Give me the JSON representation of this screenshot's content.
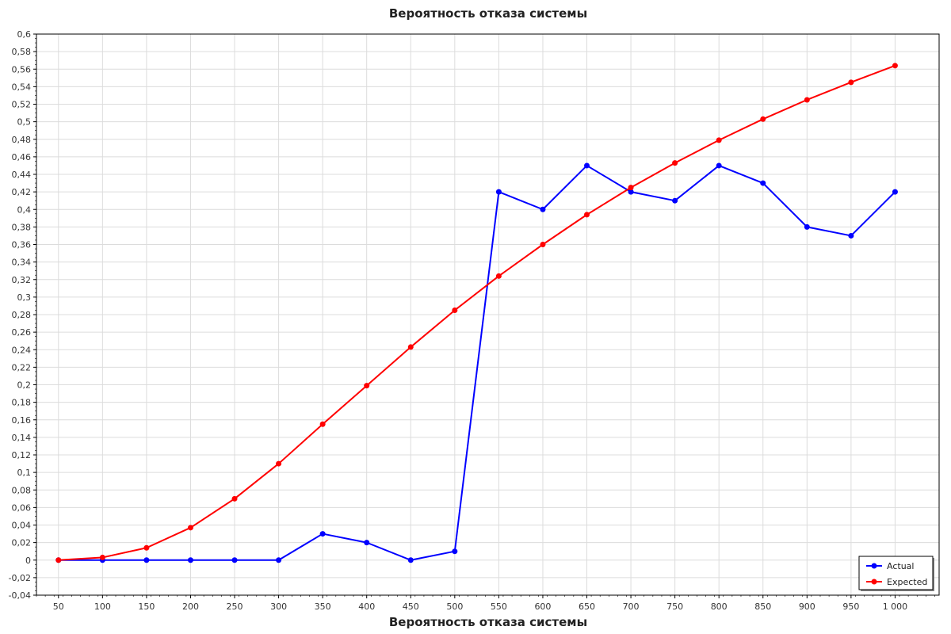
{
  "chart_data": {
    "type": "line",
    "title": "Вероятность отказа системы",
    "xlabel": "Вероятность отказа системы",
    "ylabel": "",
    "x": [
      50,
      100,
      150,
      200,
      250,
      300,
      350,
      400,
      450,
      500,
      550,
      600,
      650,
      700,
      750,
      800,
      850,
      900,
      950,
      1000
    ],
    "x_tick_labels": [
      "50",
      "100",
      "150",
      "200",
      "250",
      "300",
      "350",
      "400",
      "450",
      "500",
      "550",
      "600",
      "650",
      "700",
      "750",
      "800",
      "850",
      "900",
      "950",
      "1 000"
    ],
    "ylim": [
      -0.04,
      0.6
    ],
    "y_ticks": [
      -0.04,
      -0.02,
      0,
      0.02,
      0.04,
      0.06,
      0.08,
      0.1,
      0.12,
      0.14,
      0.16,
      0.18,
      0.2,
      0.22,
      0.24,
      0.26,
      0.28,
      0.3,
      0.32,
      0.34,
      0.36,
      0.38,
      0.4,
      0.42,
      0.44,
      0.46,
      0.48,
      0.5,
      0.52,
      0.54,
      0.56,
      0.58,
      0.6
    ],
    "y_tick_labels": [
      "-0,04",
      "-0,02",
      "0",
      "0,02",
      "0,04",
      "0,06",
      "0,08",
      "0,1",
      "0,12",
      "0,14",
      "0,16",
      "0,18",
      "0,2",
      "0,22",
      "0,24",
      "0,26",
      "0,28",
      "0,3",
      "0,32",
      "0,34",
      "0,36",
      "0,38",
      "0,4",
      "0,42",
      "0,44",
      "0,46",
      "0,48",
      "0,5",
      "0,52",
      "0,54",
      "0,56",
      "0,58",
      "0,6"
    ],
    "grid": true,
    "legend_position": "bottom-right",
    "series": [
      {
        "name": "Actual",
        "color": "#0000ff",
        "values": [
          0,
          0,
          0,
          0,
          0,
          0,
          0.03,
          0.02,
          0,
          0.01,
          0.42,
          0.4,
          0.45,
          0.42,
          0.41,
          0.45,
          0.43,
          0.38,
          0.37,
          0.42
        ]
      },
      {
        "name": "Expected",
        "color": "#ff0000",
        "values": [
          0,
          0.003,
          0.014,
          0.037,
          0.07,
          0.11,
          0.155,
          0.199,
          0.243,
          0.285,
          0.324,
          0.36,
          0.394,
          0.425,
          0.453,
          0.479,
          0.503,
          0.525,
          0.545,
          0.564
        ]
      }
    ]
  }
}
